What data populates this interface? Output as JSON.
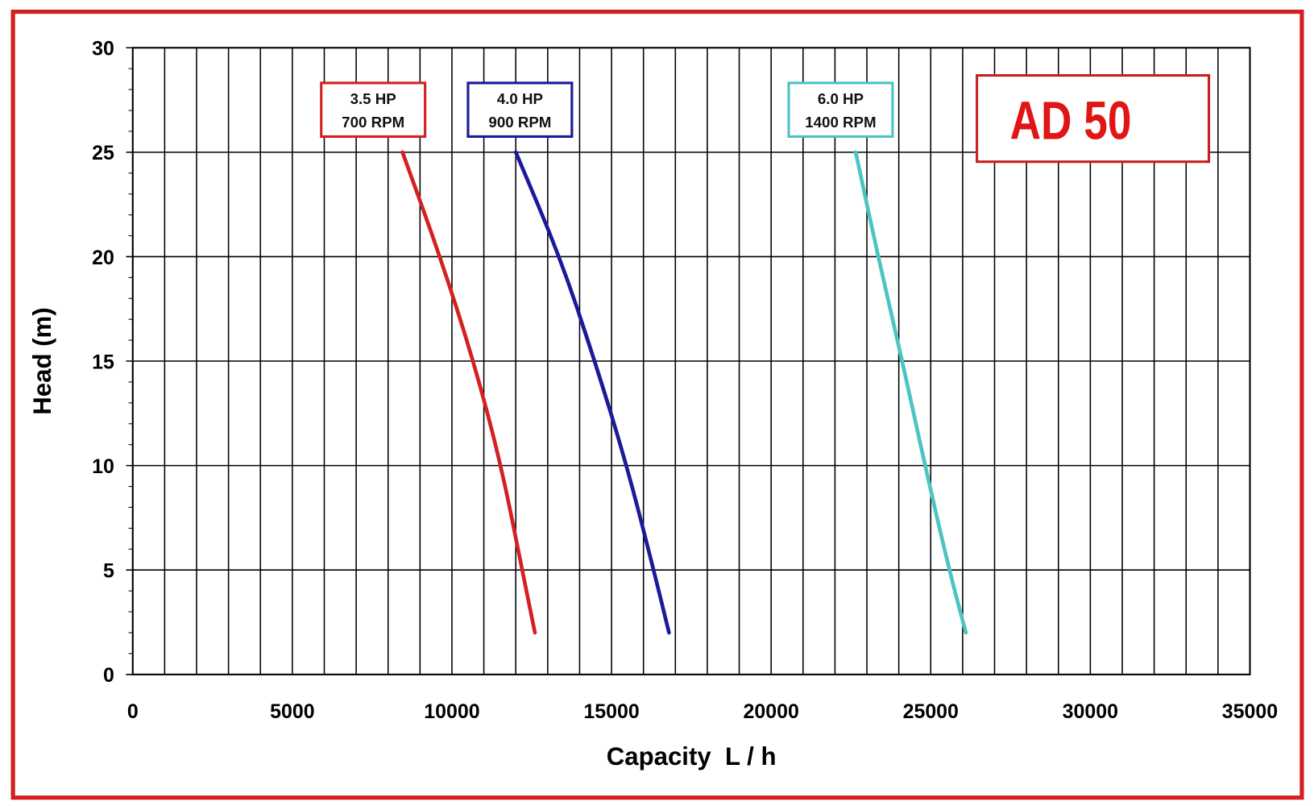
{
  "chart_data": {
    "type": "line",
    "title": "AD 50",
    "xlabel": "Capacity  L / h",
    "ylabel": "Head (m)",
    "xlim": [
      0,
      35000
    ],
    "ylim": [
      0,
      30
    ],
    "xticks": [
      0,
      5000,
      10000,
      15000,
      20000,
      25000,
      30000,
      35000
    ],
    "yticks": [
      0,
      5,
      10,
      15,
      20,
      25,
      30
    ],
    "grid": true,
    "series": [
      {
        "name": "3.5 HP\n700 RPM",
        "line1": "3.5 HP",
        "line2": "700 RPM",
        "color": "#d42020",
        "x": [
          8450,
          9630,
          10680,
          11545,
          12200,
          12600
        ],
        "y": [
          25,
          20,
          15,
          10,
          5,
          2
        ]
      },
      {
        "name": "4.0 HP\n900 RPM",
        "line1": "4.0 HP",
        "line2": "900 RPM",
        "color": "#1a1a9a",
        "x": [
          12000,
          13380,
          14480,
          15480,
          16320,
          16800
        ],
        "y": [
          25,
          20,
          15,
          10,
          5,
          2
        ]
      },
      {
        "name": "6.0 HP\n1400 RPM",
        "line1": "6.0 HP",
        "line2": "1400 RPM",
        "color": "#4cc4c4",
        "x": [
          22650,
          23350,
          24110,
          24820,
          25580,
          26100
        ],
        "y": [
          25,
          20,
          15,
          10,
          5,
          2
        ]
      }
    ]
  },
  "colors": {
    "frame": "#d42020",
    "title": "#e01515"
  }
}
